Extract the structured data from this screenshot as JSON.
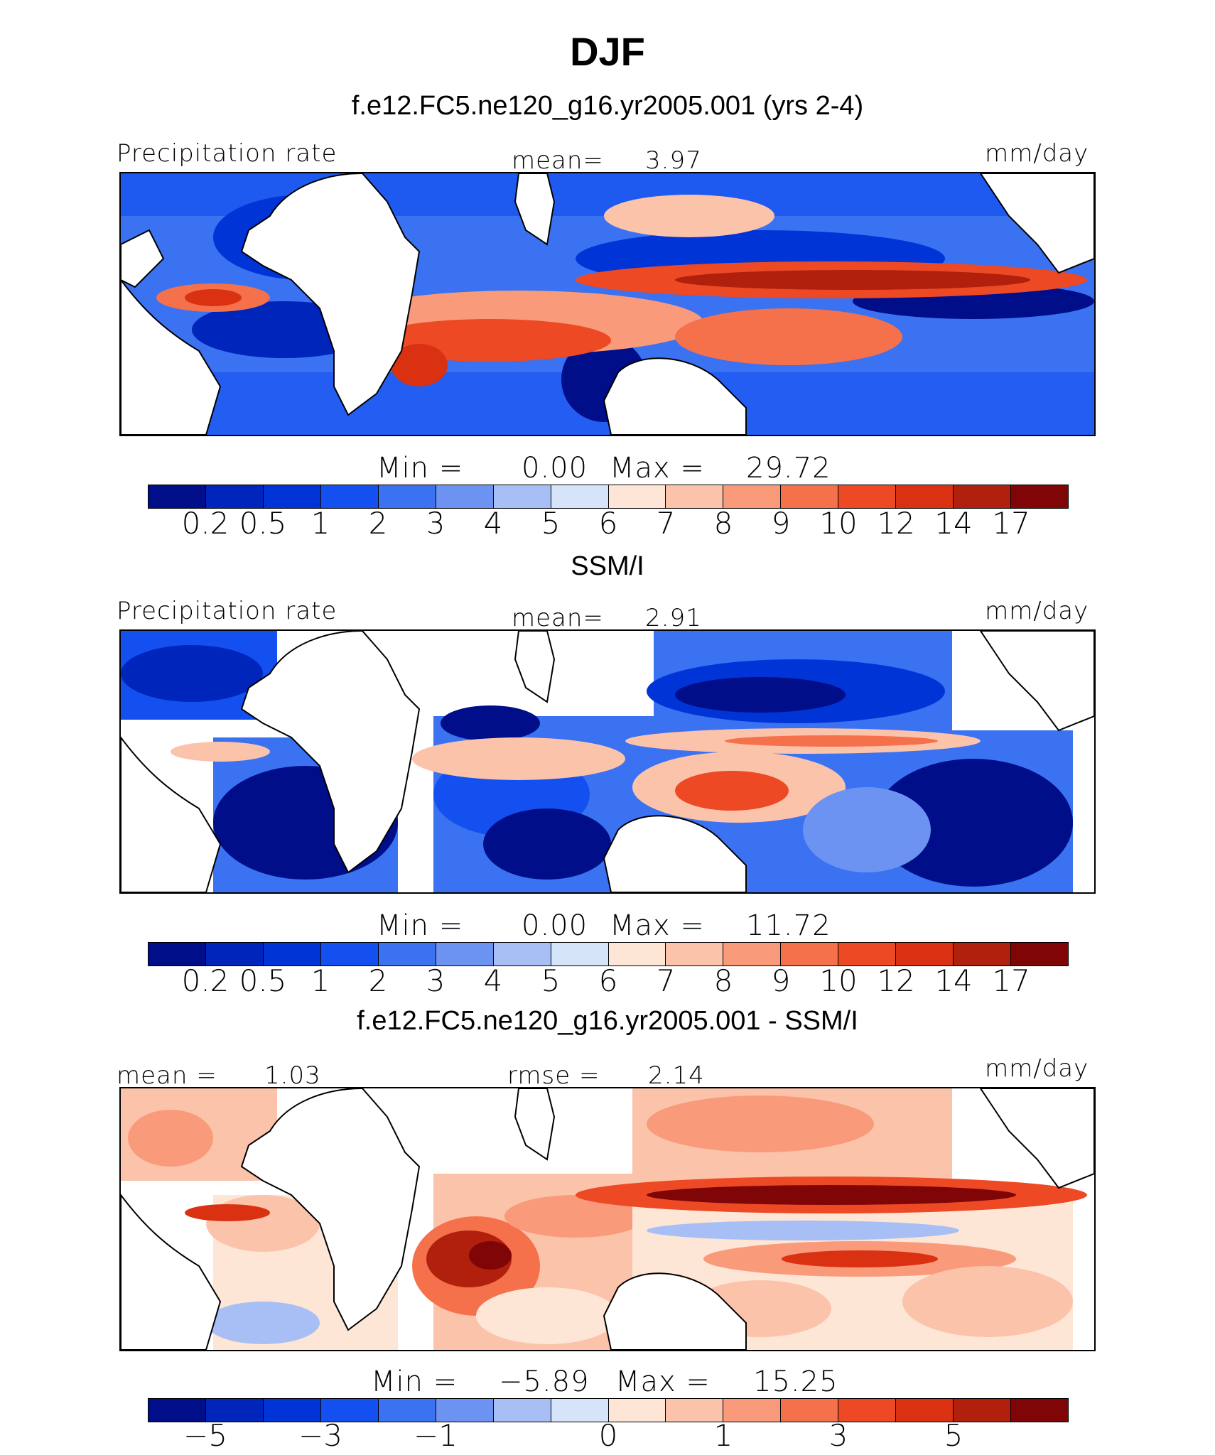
{
  "figure": {
    "title": "DJF",
    "units": "mm/day"
  },
  "palette": {
    "precip": [
      "#000e8a",
      "#0025ba",
      "#0034d6",
      "#1450f0",
      "#3a72f2",
      "#6d93f2",
      "#a8bff5",
      "#d6e4fa",
      "#fde6d6",
      "#fcc3ab",
      "#f99b7a",
      "#f4714c",
      "#ec4924",
      "#d93112",
      "#b0200c",
      "#800507"
    ],
    "diff": [
      "#000e8a",
      "#0025ba",
      "#0034d6",
      "#1450f0",
      "#3a72f2",
      "#6d93f2",
      "#a8bff5",
      "#d6e4fa",
      "#fde6d6",
      "#fcc3ab",
      "#f99b7a",
      "#f4714c",
      "#ec4924",
      "#d93112",
      "#b0200c",
      "#800507"
    ]
  },
  "chart_data": [
    {
      "type": "heatmap",
      "panel": "model",
      "title": "f.e12.FC5.ne120_g16.yr2005.001 (yrs 2-4)",
      "variable": "Precipitation rate",
      "mean_label": "mean=",
      "mean": "3.97",
      "units": "mm/day",
      "min_label": "Min  =",
      "min": "0.00",
      "max_label": "Max  =",
      "max": "29.72",
      "levels": [
        "0.2",
        "0.5",
        "1",
        "2",
        "3",
        "4",
        "5",
        "6",
        "7",
        "8",
        "9",
        "10",
        "12",
        "14",
        "17"
      ]
    },
    {
      "type": "heatmap",
      "panel": "observations",
      "title": "SSM/I",
      "variable": "Precipitation rate",
      "mean_label": "mean=",
      "mean": "2.91",
      "units": "mm/day",
      "min_label": "Min  =",
      "min": "0.00",
      "max_label": "Max  =",
      "max": "11.72",
      "levels": [
        "0.2",
        "0.5",
        "1",
        "2",
        "3",
        "4",
        "5",
        "6",
        "7",
        "8",
        "9",
        "10",
        "12",
        "14",
        "17"
      ]
    },
    {
      "type": "heatmap",
      "panel": "difference",
      "title": "f.e12.FC5.ne120_g16.yr2005.001 - SSM/I",
      "mean_label": "mean  =",
      "mean": "1.03",
      "rmse_label": "rmse  =",
      "rmse": "2.14",
      "units": "mm/day",
      "min_label": "Min  =",
      "min": "−5.89",
      "max_label": "Max  =",
      "max": "15.25",
      "tick_labels": [
        "−5",
        "−3",
        "−1",
        "0",
        "1",
        "3",
        "5"
      ],
      "tick_label_positions": [
        1,
        3,
        5,
        8,
        10,
        12,
        14
      ]
    }
  ]
}
